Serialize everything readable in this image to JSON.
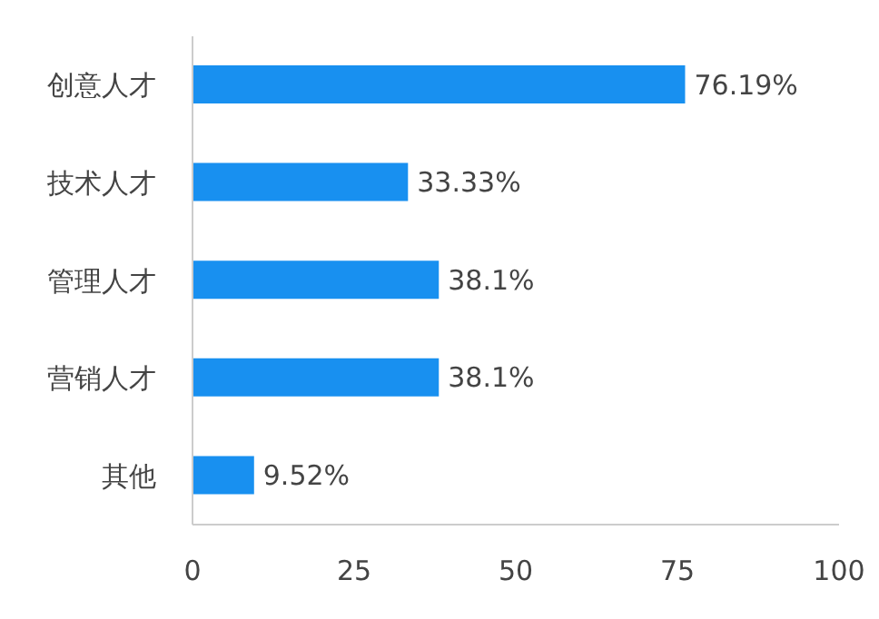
{
  "chart_data": {
    "type": "bar",
    "orientation": "horizontal",
    "categories": [
      "创意人才",
      "技术人才",
      "管理人才",
      "营销人才",
      "其他"
    ],
    "values": [
      76.19,
      33.33,
      38.1,
      38.1,
      9.52
    ],
    "value_labels": [
      "76.19%",
      "33.33%",
      "38.1%",
      "38.1%",
      "9.52%"
    ],
    "color": "#1890f0",
    "xlim": [
      0,
      100
    ],
    "xticks": [
      0,
      25,
      50,
      75,
      100
    ],
    "grid": false
  }
}
